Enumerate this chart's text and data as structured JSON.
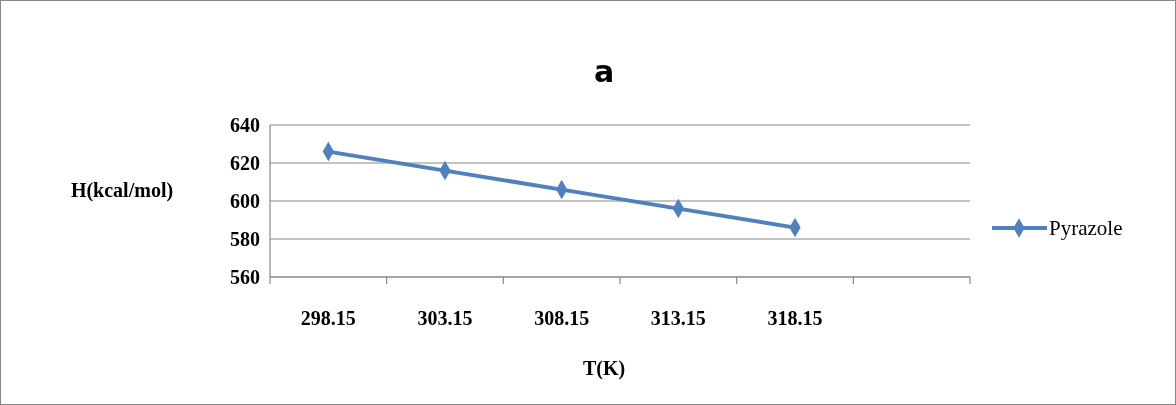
{
  "chart_data": {
    "type": "line",
    "title": "a",
    "xlabel": "T(K)",
    "ylabel": "H(kcal/mol)",
    "categories": [
      "298.15",
      "303.15",
      "308.15",
      "313.15",
      "318.15",
      null
    ],
    "series": [
      {
        "name": "Pyrazole",
        "color": "#4f81bd",
        "values": [
          626,
          616,
          606,
          596,
          586,
          null
        ]
      }
    ],
    "ylim": [
      560,
      640
    ],
    "yticks": [
      560,
      580,
      600,
      620,
      640
    ],
    "grid": "y",
    "legend": "right",
    "marker": "diamond"
  }
}
